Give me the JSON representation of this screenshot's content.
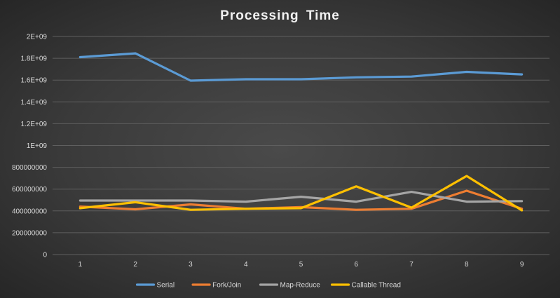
{
  "chart_data": {
    "type": "line",
    "title": "Processing Time",
    "xlabel": "",
    "ylabel": "",
    "x": [
      "1",
      "2",
      "3",
      "4",
      "5",
      "6",
      "7",
      "8",
      "9"
    ],
    "ylim": [
      0,
      2000000000
    ],
    "yticks": [
      "0",
      "200000000",
      "400000000",
      "600000000",
      "800000000",
      "1E+09",
      "1.2E+09",
      "1.4E+09",
      "1.6E+09",
      "1.8E+09",
      "2E+09"
    ],
    "grid": true,
    "legend": "bottom",
    "series": [
      {
        "name": "Serial",
        "color": "#5b9bd5",
        "values": [
          1810000000,
          1845000000,
          1595000000,
          1608000000,
          1608000000,
          1625000000,
          1632000000,
          1675000000,
          1652000000
        ]
      },
      {
        "name": "Fork/Join",
        "color": "#ed7d31",
        "values": [
          440000000,
          415000000,
          460000000,
          420000000,
          435000000,
          410000000,
          420000000,
          585000000,
          420000000
        ]
      },
      {
        "name": "Map-Reduce",
        "color": "#a5a5a5",
        "values": [
          495000000,
          495000000,
          495000000,
          485000000,
          530000000,
          485000000,
          575000000,
          485000000,
          490000000
        ]
      },
      {
        "name": "Callable Thread",
        "color": "#ffc000",
        "values": [
          425000000,
          480000000,
          410000000,
          420000000,
          425000000,
          625000000,
          430000000,
          720000000,
          405000000
        ]
      }
    ]
  }
}
